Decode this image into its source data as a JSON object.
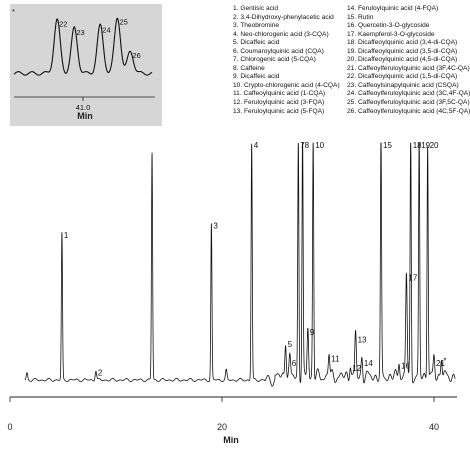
{
  "chart_data": {
    "type": "line",
    "xlabel": "Min",
    "x_ticks": [
      0,
      20,
      40
    ],
    "xlim": [
      0,
      42
    ],
    "legend": [
      "1. Gentisic acid",
      "2. 3,4-Dihydroxy-phenylacetic acid",
      "3. Theobromine",
      "4. Neo-chlorogenic acid (3-CQA)",
      "5. Dicaffeic acid",
      "6. Coumaroylquinic acid (CQA)",
      "7. Chlorogenic acid (5-CQA)",
      "8. Caffeine",
      "9. Dicaffeic acid",
      "10. Crypto-chlorogenic acid (4-CQA)",
      "11. Caffeoylquinic acid (1-CQA)",
      "12. Feruloylquinic acid (3-FQA)",
      "13. Feruloylquinic acid (5-FQA)",
      "14. Feruloylquinic acid (4-FQA)",
      "15. Rutin",
      "16. Quercetin-3-O-glycoside",
      "17. Kaempferol-3-O-glycoside",
      "18. Dicaffeoylquinic acid (3,4-di-CQA)",
      "19. Dicaffeoylquinic acid (3,5-di-CQA)",
      "20. Dicaffeoylquinic acid (4,5-di-CQA)",
      "21. Caffeoylferuloylquinic acid (3F,4C-QA)",
      "22. Dicaffeoylquinic acid (1,5-di-CQA)",
      "23. Caffeoylsinapylquinic acid (CSQA)",
      "24. Caffeoylferuloylquinic acid (3C,4F-QA)",
      "25. Caffeoylferuloylquinic acid (3F,5C-QA)",
      "26. Caffeoylferuloylquinic acid (4C,5F-QA)"
    ],
    "peaks": [
      {
        "label": "1",
        "x": 4.9,
        "y": 0.62
      },
      {
        "label": "2",
        "x": 8.1,
        "y": 0.04
      },
      {
        "label": "",
        "x": 1.6,
        "y": 0.03
      },
      {
        "label": "",
        "x": 13.4,
        "y": 0.96
      },
      {
        "label": "3",
        "x": 19.0,
        "y": 0.66
      },
      {
        "label": "",
        "x": 20.4,
        "y": 0.04
      },
      {
        "label": "4",
        "x": 22.8,
        "y": 1.0
      },
      {
        "label": "5",
        "x": 26.0,
        "y": 0.16
      },
      {
        "label": "6",
        "x": 26.4,
        "y": 0.08
      },
      {
        "label": "7",
        "x": 27.2,
        "y": 1.0
      },
      {
        "label": "8",
        "x": 27.6,
        "y": 1.0
      },
      {
        "label": "9",
        "x": 28.1,
        "y": 0.21
      },
      {
        "label": "10",
        "x": 28.6,
        "y": 1.0
      },
      {
        "label": "11",
        "x": 30.1,
        "y": 0.1
      },
      {
        "label": "12",
        "x": 32.1,
        "y": 0.06
      },
      {
        "label": "13",
        "x": 32.6,
        "y": 0.18
      },
      {
        "label": "14",
        "x": 33.2,
        "y": 0.08
      },
      {
        "label": "15",
        "x": 35.0,
        "y": 1.0
      },
      {
        "label": "16",
        "x": 36.7,
        "y": 0.07
      },
      {
        "label": "17",
        "x": 37.4,
        "y": 0.44
      },
      {
        "label": "18",
        "x": 37.8,
        "y": 1.0
      },
      {
        "label": "19",
        "x": 38.6,
        "y": 1.0
      },
      {
        "label": "20",
        "x": 39.4,
        "y": 1.0
      },
      {
        "label": "21",
        "x": 40.0,
        "y": 0.08
      },
      {
        "label": "*",
        "x": 40.7,
        "y": 0.09
      }
    ],
    "inset": {
      "xlabel": "Min",
      "x_ticks": [
        41.0
      ],
      "xlim": [
        40.2,
        41.8
      ],
      "marker": "*",
      "peaks": [
        {
          "label": "22",
          "x": 40.7,
          "y": 0.92
        },
        {
          "label": "23",
          "x": 40.9,
          "y": 0.78
        },
        {
          "label": "24",
          "x": 41.2,
          "y": 0.82
        },
        {
          "label": "25",
          "x": 41.4,
          "y": 0.96
        },
        {
          "label": "26",
          "x": 41.55,
          "y": 0.38
        }
      ]
    }
  }
}
